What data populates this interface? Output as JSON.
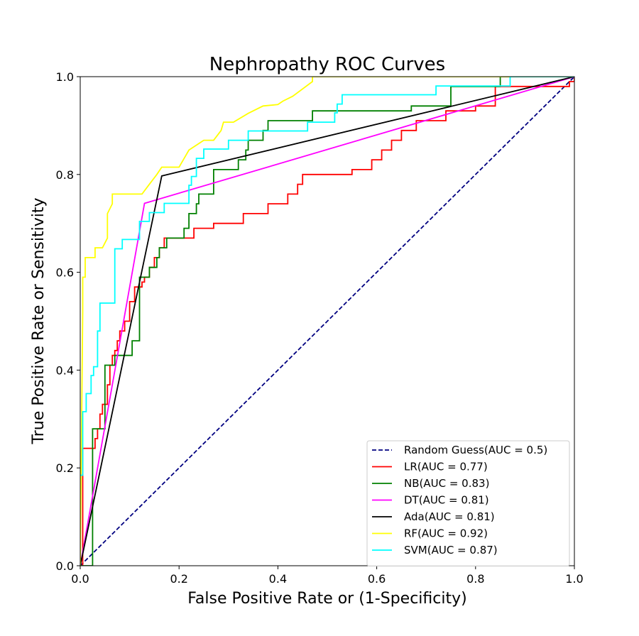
{
  "chart_data": {
    "type": "line",
    "title": "Nephropathy ROC Curves",
    "xlabel": "False Positive Rate or (1-Specificity)",
    "ylabel": "True Positive Rate or Sensitivity",
    "xlim": [
      0.0,
      1.0
    ],
    "ylim": [
      0.0,
      1.0
    ],
    "xticks": [
      "0.0",
      "0.2",
      "0.4",
      "0.6",
      "0.8",
      "1.0"
    ],
    "yticks": [
      "0.0",
      "0.2",
      "0.4",
      "0.6",
      "0.8",
      "1.0"
    ],
    "grid": false,
    "legend_position": "lower-right",
    "series": [
      {
        "name": "Random Guess(AUC = 0.5)",
        "color": "#000080",
        "dash": true,
        "x": [
          0,
          1
        ],
        "y": [
          0,
          1
        ]
      },
      {
        "name": "LR(AUC = 0.77)",
        "color": "#ff0000",
        "step": true,
        "x": [
          0,
          0.005,
          0.03,
          0.035,
          0.04,
          0.045,
          0.05,
          0.055,
          0.06,
          0.065,
          0.07,
          0.075,
          0.08,
          0.09,
          0.1,
          0.11,
          0.12,
          0.125,
          0.13,
          0.14,
          0.15,
          0.16,
          0.17,
          0.19,
          0.23,
          0.27,
          0.33,
          0.38,
          0.42,
          0.44,
          0.45,
          0.47,
          0.55,
          0.59,
          0.61,
          0.63,
          0.65,
          0.68,
          0.7,
          0.74,
          0.76,
          0.8,
          0.84,
          0.88,
          0.99,
          1.0
        ],
        "y": [
          0,
          0.24,
          0.26,
          0.28,
          0.31,
          0.33,
          0.33,
          0.37,
          0.41,
          0.43,
          0.44,
          0.46,
          0.48,
          0.5,
          0.54,
          0.57,
          0.57,
          0.58,
          0.59,
          0.61,
          0.63,
          0.65,
          0.67,
          0.67,
          0.69,
          0.7,
          0.72,
          0.74,
          0.76,
          0.78,
          0.8,
          0.8,
          0.81,
          0.83,
          0.85,
          0.87,
          0.89,
          0.91,
          0.91,
          0.93,
          0.93,
          0.94,
          0.98,
          0.98,
          0.99,
          1.0
        ]
      },
      {
        "name": "NB(AUC = 0.83)",
        "color": "#008000",
        "step": true,
        "x": [
          0,
          0.025,
          0.035,
          0.05,
          0.07,
          0.1,
          0.105,
          0.12,
          0.14,
          0.155,
          0.16,
          0.175,
          0.2,
          0.21,
          0.22,
          0.235,
          0.24,
          0.27,
          0.32,
          0.335,
          0.34,
          0.37,
          0.38,
          0.47,
          0.52,
          0.67,
          0.75,
          0.77,
          0.8,
          0.85,
          0.86,
          0.88,
          1.0
        ],
        "y": [
          0,
          0.28,
          0.28,
          0.41,
          0.43,
          0.43,
          0.46,
          0.59,
          0.61,
          0.63,
          0.65,
          0.67,
          0.67,
          0.69,
          0.72,
          0.74,
          0.76,
          0.81,
          0.83,
          0.85,
          0.87,
          0.89,
          0.91,
          0.93,
          0.93,
          0.94,
          0.98,
          0.98,
          0.98,
          1.0,
          1.0,
          1.0,
          1.0
        ]
      },
      {
        "name": "DT(AUC = 0.81)",
        "color": "#ff00ff",
        "step": false,
        "x": [
          0,
          0.13,
          1.0
        ],
        "y": [
          0,
          0.741,
          1.0
        ]
      },
      {
        "name": "Ada(AUC = 0.81)",
        "color": "#000000",
        "step": false,
        "x": [
          0,
          0.165,
          1.0
        ],
        "y": [
          0,
          0.797,
          1.0
        ]
      },
      {
        "name": "RF(AUC = 0.92)",
        "color": "#ffff00",
        "step": false,
        "x": [
          0,
          0.005,
          0.005,
          0.01,
          0.01,
          0.03,
          0.03,
          0.045,
          0.055,
          0.055,
          0.065,
          0.065,
          0.07,
          0.125,
          0.14,
          0.155,
          0.165,
          0.2,
          0.22,
          0.235,
          0.25,
          0.27,
          0.285,
          0.29,
          0.31,
          0.34,
          0.37,
          0.4,
          0.41,
          0.43,
          0.47,
          0.47,
          1.0
        ],
        "y": [
          0,
          0.52,
          0.59,
          0.59,
          0.63,
          0.63,
          0.65,
          0.65,
          0.67,
          0.72,
          0.74,
          0.76,
          0.76,
          0.76,
          0.78,
          0.8,
          0.815,
          0.815,
          0.85,
          0.86,
          0.87,
          0.87,
          0.89,
          0.907,
          0.907,
          0.925,
          0.94,
          0.943,
          0.95,
          0.96,
          0.99,
          1.0,
          1.0
        ]
      },
      {
        "name": "SVM(AUC = 0.87)",
        "color": "#00ffff",
        "step": true,
        "x": [
          0,
          0.005,
          0.012,
          0.022,
          0.027,
          0.035,
          0.04,
          0.045,
          0.07,
          0.085,
          0.12,
          0.14,
          0.17,
          0.22,
          0.225,
          0.235,
          0.25,
          0.3,
          0.34,
          0.46,
          0.515,
          0.52,
          0.53,
          0.62,
          0.72,
          0.8,
          0.87,
          0.88,
          1.0
        ],
        "y": [
          0.185,
          0.315,
          0.352,
          0.389,
          0.407,
          0.48,
          0.537,
          0.537,
          0.648,
          0.667,
          0.704,
          0.722,
          0.741,
          0.778,
          0.796,
          0.833,
          0.852,
          0.87,
          0.889,
          0.907,
          0.926,
          0.944,
          0.963,
          0.963,
          0.981,
          0.981,
          1.0,
          1.0,
          1.0
        ]
      }
    ]
  }
}
